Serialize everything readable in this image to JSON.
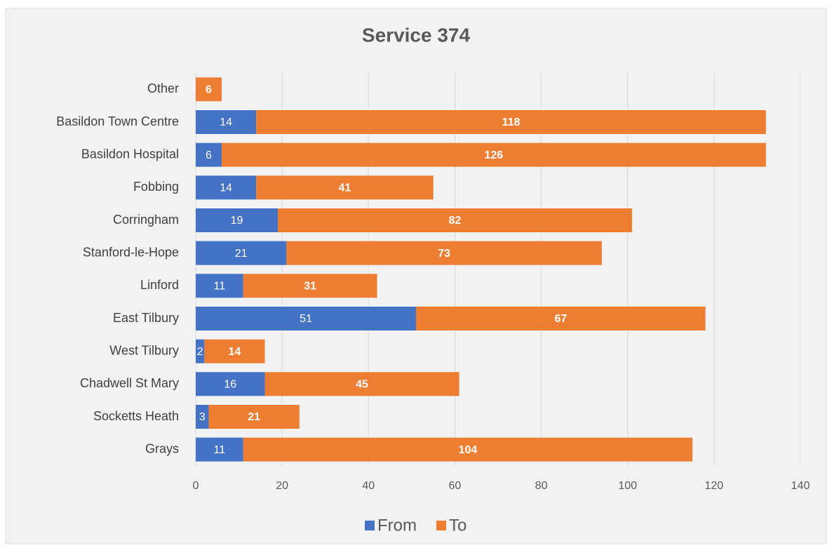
{
  "chart_data": {
    "type": "stacked_barh",
    "title": "Service 374",
    "categories": [
      "Other",
      "Basildon Town Centre",
      "Basildon Hospital",
      "Fobbing",
      "Corringham",
      "Stanford-le-Hope",
      "Linford",
      "East Tilbury",
      "West Tilbury",
      "Chadwell St Mary",
      "Socketts Heath",
      "Grays"
    ],
    "series": [
      {
        "name": "From",
        "color": "#4472c4",
        "values": [
          0,
          14,
          6,
          14,
          19,
          21,
          11,
          51,
          2,
          16,
          3,
          11
        ]
      },
      {
        "name": "To",
        "color": "#ed7d31",
        "values": [
          6,
          118,
          126,
          41,
          82,
          73,
          31,
          67,
          14,
          45,
          21,
          104
        ]
      }
    ],
    "xlim": [
      0,
      140
    ],
    "xticks": [
      0,
      20,
      40,
      60,
      80,
      100,
      120,
      140
    ],
    "grid": true,
    "legend": "bottom"
  }
}
